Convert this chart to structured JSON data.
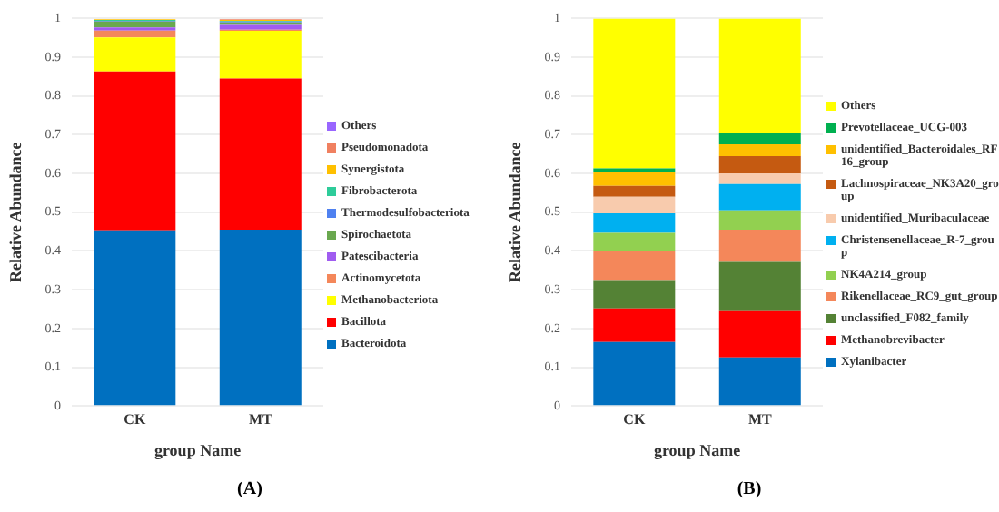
{
  "chart_data": [
    {
      "type": "bar",
      "stacked": true,
      "xlabel": "group Name",
      "ylabel": "Relative Abundance",
      "categories": [
        "CK",
        "MT"
      ],
      "ylim": [
        0,
        1
      ],
      "yticks": [
        0,
        0.1,
        0.2,
        0.3,
        0.4,
        0.5,
        0.6,
        0.7,
        0.8,
        0.9,
        1
      ],
      "grid": "y",
      "legend": "right",
      "annotations": [
        "(A)"
      ],
      "series": [
        {
          "name": "Bacteroidota",
          "color": "#0070c0",
          "values": [
            0.453,
            0.455
          ]
        },
        {
          "name": "Bacillota",
          "color": "#ff0000",
          "values": [
            0.41,
            0.39
          ]
        },
        {
          "name": "Methanobacteriota",
          "color": "#ffff00",
          "values": [
            0.088,
            0.123
          ]
        },
        {
          "name": "Actinomycetota",
          "color": "#f4875a",
          "values": [
            0.018,
            0.003
          ]
        },
        {
          "name": "Patescibacteria",
          "color": "#a05cf0",
          "values": [
            0.008,
            0.015
          ]
        },
        {
          "name": "Spirochaetota",
          "color": "#6aa84f",
          "values": [
            0.015,
            0.004
          ]
        },
        {
          "name": "Thermodesulfobacteriota",
          "color": "#4f81f0",
          "values": [
            0.002,
            0.002
          ]
        },
        {
          "name": "Fibrobacterota",
          "color": "#2ecc9a",
          "values": [
            0.002,
            0.002
          ]
        },
        {
          "name": "Synergistota",
          "color": "#ffc000",
          "values": [
            0.002,
            0.002
          ]
        },
        {
          "name": "Pseudomonadota",
          "color": "#f08060",
          "values": [
            null,
            0.002
          ]
        },
        {
          "name": "Others",
          "color": "#9966ff",
          "values": [
            null,
            null
          ]
        }
      ]
    },
    {
      "type": "bar",
      "stacked": true,
      "xlabel": "group Name",
      "ylabel": "Relative Abundance",
      "categories": [
        "CK",
        "MT"
      ],
      "ylim": [
        0,
        1
      ],
      "yticks": [
        0,
        0.1,
        0.2,
        0.3,
        0.4,
        0.5,
        0.6,
        0.7,
        0.8,
        0.9,
        1
      ],
      "grid": "y",
      "legend": "right",
      "annotations": [
        "(B)"
      ],
      "series": [
        {
          "name": "Xylanibacter",
          "color": "#0070c0",
          "values": [
            0.165,
            0.125
          ]
        },
        {
          "name": "Methanobrevibacter",
          "color": "#ff0000",
          "values": [
            0.087,
            0.12
          ]
        },
        {
          "name": "unclassified_F082_family",
          "color": "#548235",
          "values": [
            0.073,
            0.127
          ]
        },
        {
          "name": "Rikenellaceae_RC9_gut_group",
          "color": "#f4875a",
          "values": [
            0.075,
            0.083
          ]
        },
        {
          "name": "NK4A214_group",
          "color": "#92d050",
          "values": [
            0.047,
            0.05
          ]
        },
        {
          "name": "Christensenellaceae_R-7_group",
          "color": "#00b0f0",
          "values": [
            0.05,
            0.068
          ]
        },
        {
          "name": "unidentified_Muribaculaceae",
          "color": "#f8cbad",
          "values": [
            0.043,
            0.027
          ]
        },
        {
          "name": "Lachnospiraceae_NK3A20_group",
          "color": "#c55a11",
          "values": [
            0.028,
            0.045
          ]
        },
        {
          "name": "unidentified_Bacteroidales_RF16_group",
          "color": "#ffc000",
          "values": [
            0.035,
            0.03
          ]
        },
        {
          "name": "Prevotellaceae_UCG-003",
          "color": "#00b050",
          "values": [
            0.01,
            0.03
          ]
        },
        {
          "name": "Others",
          "color": "#ffff00",
          "values": [
            0.387,
            0.295
          ]
        }
      ]
    }
  ]
}
